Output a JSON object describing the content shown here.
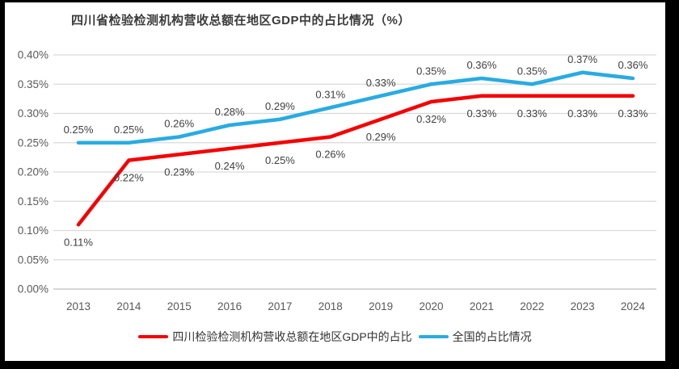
{
  "chart_data": {
    "type": "line",
    "title": "四川省检验检测机构营收总额在地区GDP中的占比情况（%）",
    "categories": [
      "2013",
      "2014",
      "2015",
      "2016",
      "2017",
      "2018",
      "2019",
      "2020",
      "2021",
      "2022",
      "2023",
      "2024"
    ],
    "series": [
      {
        "name": "四川检验检测机构营收总额在地区GDP中的占比",
        "color": "#f40000",
        "values": [
          0.11,
          0.22,
          0.23,
          0.24,
          0.25,
          0.26,
          0.29,
          0.32,
          0.33,
          0.33,
          0.33,
          0.33
        ],
        "point_labels": [
          "0.11%",
          "0.22%",
          "0.23%",
          "0.24%",
          "0.25%",
          "0.26%",
          "0.29%",
          "0.32%",
          "0.33%",
          "0.33%",
          "0.33%",
          "0.33%"
        ],
        "label_position": "below"
      },
      {
        "name": "全国的占比情况",
        "color": "#29abe2",
        "values": [
          0.25,
          0.25,
          0.26,
          0.28,
          0.29,
          0.31,
          0.33,
          0.35,
          0.36,
          0.35,
          0.37,
          0.36
        ],
        "point_labels": [
          "0.25%",
          "0.25%",
          "0.26%",
          "0.28%",
          "0.29%",
          "0.31%",
          "0.33%",
          "0.35%",
          "0.36%",
          "0.35%",
          "0.37%",
          "0.36%"
        ],
        "label_position": "above"
      }
    ],
    "xlabel": "",
    "ylabel": "",
    "ylim": [
      0,
      0.4
    ],
    "y_unit": "%",
    "y_ticks": [
      "0.00%",
      "0.05%",
      "0.10%",
      "0.15%",
      "0.20%",
      "0.25%",
      "0.30%",
      "0.35%",
      "0.40%"
    ],
    "grid": true,
    "legend_position": "bottom"
  },
  "legend": {
    "items": [
      {
        "label": "四川检验检测机构营收总额在地区GDP中的占比",
        "color": "#f40000"
      },
      {
        "label": "全国的占比情况",
        "color": "#29abe2"
      }
    ]
  },
  "colors": {
    "frame_background": "#000000",
    "panel_background": "#ffffff",
    "gridline": "#d9d9d9",
    "axis_line": "#c9c9c9",
    "tick_text": "#595959",
    "data_label_text": "#404040",
    "series_sichuan": "#f40000",
    "series_national": "#29abe2"
  }
}
